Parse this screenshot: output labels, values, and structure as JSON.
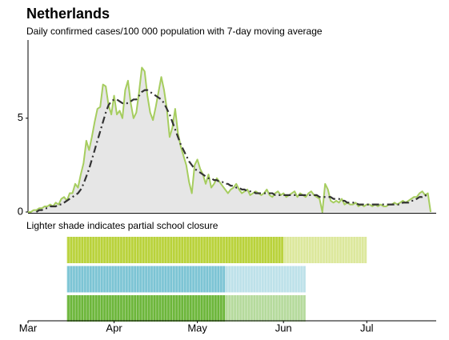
{
  "chart_data": [
    {
      "type": "line",
      "title": "Netherlands",
      "subtitle": "Daily confirmed cases/100 000 population with 7-day moving average",
      "x": [
        0,
        1,
        2,
        3,
        4,
        5,
        6,
        7,
        8,
        9,
        10,
        11,
        12,
        13,
        14,
        15,
        16,
        17,
        18,
        19,
        20,
        21,
        22,
        23,
        24,
        25,
        26,
        27,
        28,
        29,
        30,
        31,
        32,
        33,
        34,
        35,
        36,
        37,
        38,
        39,
        40,
        41,
        42,
        43,
        44,
        45,
        46,
        47,
        48,
        49,
        50,
        51,
        52,
        53,
        54,
        55,
        56,
        57,
        58,
        59,
        60,
        61,
        62,
        63,
        64,
        65,
        66,
        67,
        68,
        69,
        70,
        71,
        72,
        73,
        74,
        75,
        76,
        77,
        78,
        79,
        80,
        81,
        82,
        83,
        84,
        85,
        86,
        87,
        88,
        89,
        90,
        91,
        92,
        93,
        94,
        95,
        96,
        97,
        98,
        99,
        100,
        101,
        102,
        103,
        104,
        105,
        106,
        107,
        108,
        109,
        110,
        111,
        112,
        113,
        114,
        115,
        116,
        117,
        118,
        119,
        120,
        121,
        122,
        123,
        124,
        125,
        126,
        127,
        128,
        129,
        130,
        131,
        132,
        133,
        134,
        135,
        136,
        137,
        138,
        139,
        140,
        141,
        142,
        143,
        144,
        145
      ],
      "xlim": [
        0,
        147
      ],
      "ylim": [
        0,
        9
      ],
      "yticks": [
        0,
        5
      ],
      "area_color": "#e6e6e6",
      "series": [
        {
          "color": "#a6cd5f",
          "style": "solid",
          "values": [
            0,
            0,
            0.1,
            0.1,
            0.2,
            0.2,
            0.3,
            0.3,
            0.4,
            0.3,
            0.5,
            0.4,
            0.7,
            0.8,
            0.6,
            1.0,
            1.0,
            1.5,
            1.3,
            2.0,
            2.6,
            3.8,
            3.3,
            4.0,
            4.8,
            5.5,
            5.6,
            6.8,
            6.7,
            5.7,
            5.2,
            6.2,
            5.2,
            5.4,
            5.0,
            6.5,
            7.0,
            5.8,
            5.0,
            5.3,
            6.4,
            7.7,
            7.5,
            6.2,
            5.3,
            4.9,
            5.6,
            6.4,
            7.2,
            6.5,
            5.5,
            4.0,
            4.5,
            5.5,
            4.2,
            3.5,
            3.0,
            2.5,
            1.6,
            1.0,
            2.5,
            2.8,
            2.3,
            2.0,
            1.5,
            2.0,
            1.3,
            1.5,
            1.8,
            1.6,
            1.4,
            1.2,
            1.0,
            1.2,
            1.3,
            1.5,
            1.2,
            1.0,
            1.1,
            1.2,
            0.9,
            1.0,
            1.1,
            1.0,
            0.9,
            1.0,
            1.2,
            0.9,
            0.8,
            1.0,
            1.1,
            0.9,
            1.0,
            0.8,
            0.9,
            1.0,
            1.1,
            0.8,
            1.0,
            0.9,
            0.8,
            1.0,
            1.1,
            0.9,
            0.8,
            0.7,
            0.0,
            1.5,
            1.2,
            0.6,
            0.5,
            0.6,
            0.5,
            0.7,
            0.4,
            0.5,
            0.4,
            0.4,
            0.5,
            0.3,
            0.4,
            0.3,
            0.4,
            0.4,
            0.3,
            0.4,
            0.3,
            0.4,
            0.3,
            0.3,
            0.4,
            0.4,
            0.5,
            0.4,
            0.5,
            0.6,
            0.5,
            0.6,
            0.7,
            0.8,
            0.8,
            1.0,
            1.1,
            0.9,
            1.0,
            0.0
          ]
        },
        {
          "color": "#333333",
          "style": "dashdot",
          "values": [
            null,
            null,
            null,
            0,
            0.1,
            0.1,
            0.2,
            0.2,
            0.3,
            0.3,
            0.3,
            0.4,
            0.4,
            0.5,
            0.6,
            0.7,
            0.8,
            0.9,
            1.0,
            1.2,
            1.5,
            1.9,
            2.3,
            2.8,
            3.3,
            3.8,
            4.3,
            4.8,
            5.3,
            5.7,
            5.9,
            6.0,
            6.0,
            5.9,
            5.8,
            5.8,
            5.8,
            5.9,
            6.0,
            6.0,
            6.2,
            6.4,
            6.5,
            6.5,
            6.4,
            6.3,
            6.2,
            6.1,
            6.0,
            5.8,
            5.5,
            5.2,
            4.8,
            4.4,
            4.0,
            3.6,
            3.3,
            3.0,
            2.7,
            2.5,
            2.3,
            2.2,
            2.1,
            2.0,
            1.9,
            1.8,
            1.8,
            1.7,
            1.7,
            1.6,
            1.6,
            1.5,
            1.5,
            1.4,
            1.4,
            1.3,
            1.3,
            1.2,
            1.2,
            1.1,
            1.1,
            1.1,
            1.0,
            1.0,
            1.0,
            1.0,
            1.0,
            1.0,
            1.0,
            0.9,
            0.9,
            0.9,
            0.9,
            0.9,
            0.9,
            0.9,
            0.9,
            0.9,
            0.9,
            0.9,
            0.9,
            0.9,
            0.9,
            0.9,
            0.9,
            0.8,
            0.8,
            0.8,
            0.8,
            0.8,
            0.7,
            0.7,
            0.7,
            0.6,
            0.6,
            0.5,
            0.5,
            0.5,
            0.5,
            0.4,
            0.4,
            0.4,
            0.4,
            0.4,
            0.4,
            0.4,
            0.4,
            0.4,
            0.4,
            0.4,
            0.4,
            0.4,
            0.4,
            0.4,
            0.4,
            0.5,
            0.5,
            0.5,
            0.6,
            0.6,
            0.7,
            0.8,
            0.8,
            0.9,
            0.8,
            null
          ]
        }
      ]
    },
    {
      "type": "timeline",
      "title": "Lighter shade indicates partial school closure",
      "xlim": [
        0,
        147
      ],
      "xticks": [
        {
          "value": 0,
          "label": "Mar"
        },
        {
          "value": 31,
          "label": "Apr"
        },
        {
          "value": 61,
          "label": "May"
        },
        {
          "value": 92,
          "label": "Jun"
        },
        {
          "value": 122,
          "label": "Jul"
        }
      ],
      "series": [
        {
          "color": "#b9d23a",
          "full": [
            14,
            92
          ],
          "partial": [
            92,
            122
          ]
        },
        {
          "color": "#7cc4d4",
          "full": [
            14,
            71
          ],
          "partial": [
            71,
            100
          ]
        },
        {
          "color": "#6cb63a",
          "full": [
            14,
            71
          ],
          "partial": [
            71,
            100
          ]
        }
      ]
    }
  ]
}
